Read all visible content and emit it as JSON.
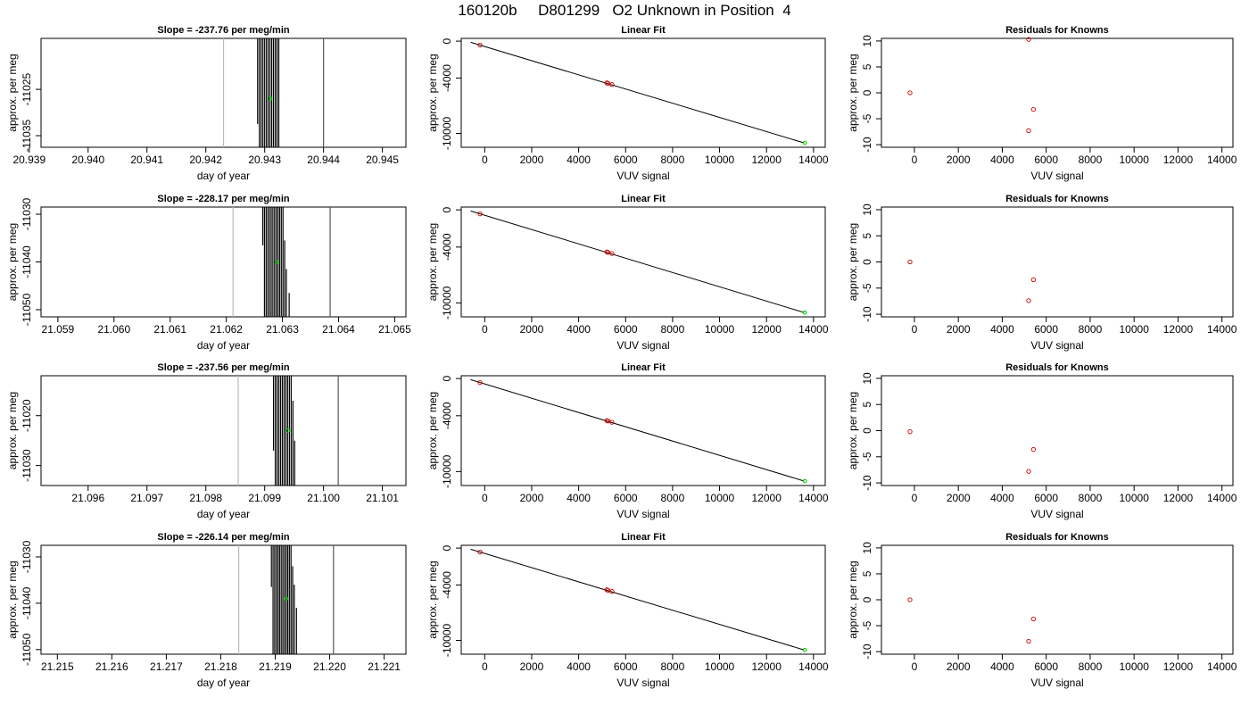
{
  "figure": {
    "title": "160120b     D801299   O2 Unknown in Position  4"
  },
  "chart_data": [
    {
      "type": "line",
      "row": 1,
      "col": 1,
      "panel": "timeseries",
      "title": "Slope =  -237.76  per meg/min",
      "xlabel": "day of year",
      "ylabel": "approx. per meg",
      "xlim": [
        20.9392,
        20.9454
      ],
      "ylim": [
        -11037.5,
        -11014
      ],
      "xticks": [
        20.939,
        20.94,
        20.941,
        20.942,
        20.943,
        20.944,
        20.945
      ],
      "xticklabels": [
        "20.939",
        "20.940",
        "20.941",
        "20.942",
        "20.943",
        "20.944",
        "20.945"
      ],
      "yticks": [
        -11025,
        -11035
      ],
      "yticklabels": [
        "-11025",
        "-11035"
      ],
      "reference_lines": [
        {
          "x": 20.9423,
          "color": "#bbbbbb"
        },
        {
          "x": 20.944,
          "color": "#555555"
        }
      ],
      "series": [
        {
          "x": [
            20.94288,
            20.94291,
            20.94294,
            20.94297,
            20.943,
            20.94303,
            20.94306,
            20.94309,
            20.94312,
            20.94315,
            20.94318,
            20.94321,
            20.94324
          ],
          "y_low": [
            -11032.5,
            -11037.5,
            -11037.5,
            -11037.5,
            -11037.5,
            -11037.5,
            -11037.5,
            -11037.5,
            -11037.5,
            -11037.5,
            -11037.5,
            -11037.5,
            -11037.5
          ],
          "y_high": [
            -11014,
            -11014,
            -11014,
            -11014,
            -11014,
            -11014,
            -11014,
            -11014,
            -11014,
            -11014,
            -11014,
            -11014,
            -11014
          ]
        }
      ],
      "marker": {
        "x": 20.9431,
        "y": -11027,
        "color": "#00cc00"
      }
    },
    {
      "type": "scatter",
      "row": 1,
      "col": 2,
      "panel": "fit",
      "title": "Linear Fit",
      "xlabel": "VUV signal",
      "ylabel": "approx. per meg",
      "xlim": [
        -1000,
        14500
      ],
      "ylim": [
        -11500,
        300
      ],
      "xticks": [
        0,
        2000,
        4000,
        6000,
        8000,
        10000,
        12000,
        14000
      ],
      "xticklabels": [
        "0",
        "2000",
        "4000",
        "6000",
        "8000",
        "10000",
        "12000",
        "14000"
      ],
      "yticks": [
        0,
        -4000,
        -10000
      ],
      "yticklabels": [
        "0",
        "-4000",
        "-10000"
      ],
      "line": {
        "x": [
          -600,
          13600
        ],
        "y": [
          -120,
          -11030
        ]
      },
      "points": [
        {
          "x": -200,
          "y": -430
        },
        {
          "x": 5200,
          "y": -4520
        },
        {
          "x": 5250,
          "y": -4570
        },
        {
          "x": 5420,
          "y": -4700
        }
      ],
      "marker": {
        "x": 13630,
        "y": -11030,
        "color": "#00cc00"
      }
    },
    {
      "type": "scatter",
      "row": 1,
      "col": 3,
      "panel": "residuals",
      "title": "Residuals for Knowns",
      "xlabel": "VUV signal",
      "ylabel": "approx. per meg",
      "xlim": [
        -1500,
        14500
      ],
      "ylim": [
        -10.5,
        10.5
      ],
      "xticks": [
        0,
        2000,
        4000,
        6000,
        8000,
        10000,
        12000,
        14000
      ],
      "xticklabels": [
        "0",
        "2000",
        "4000",
        "6000",
        "8000",
        "10000",
        "12000",
        "14000"
      ],
      "yticks": [
        10,
        5,
        0,
        -5,
        -10
      ],
      "yticklabels": [
        "10",
        "5",
        "0",
        "-5",
        "-10"
      ],
      "points": [
        {
          "x": -200,
          "y": 0
        },
        {
          "x": 5200,
          "y": 10.3
        },
        {
          "x": 5420,
          "y": -3.2
        },
        {
          "x": 5200,
          "y": -7.3
        }
      ]
    },
    {
      "type": "line",
      "row": 2,
      "col": 1,
      "panel": "timeseries",
      "title": "Slope =  -228.17  per meg/min",
      "xlabel": "day of year",
      "ylabel": "approx. per meg",
      "xlim": [
        21.0587,
        21.0652
      ],
      "ylim": [
        -11051.5,
        -11028.5
      ],
      "xticks": [
        21.059,
        21.06,
        21.061,
        21.062,
        21.063,
        21.064,
        21.065
      ],
      "xticklabels": [
        "21.059",
        "21.060",
        "21.061",
        "21.062",
        "21.063",
        "21.064",
        "21.065"
      ],
      "yticks": [
        -11030,
        -11040,
        -11050
      ],
      "yticklabels": [
        "-11030",
        "-11040",
        "-11050"
      ],
      "reference_lines": [
        {
          "x": 21.06212,
          "color": "#bbbbbb"
        },
        {
          "x": 21.06385,
          "color": "#555555"
        }
      ],
      "series": [
        {
          "x": [
            21.06265,
            21.06268,
            21.06271,
            21.06274,
            21.06277,
            21.0628,
            21.06283,
            21.06286,
            21.06289,
            21.06292,
            21.06295,
            21.06298,
            21.06301,
            21.06304,
            21.06307,
            21.06312
          ],
          "y_low": [
            -11036.5,
            -11051.5,
            -11051.5,
            -11051.5,
            -11051.5,
            -11051.5,
            -11051.5,
            -11051.5,
            -11051.5,
            -11051.5,
            -11051.5,
            -11051.5,
            -11051.5,
            -11051.5,
            -11051.5,
            -11051.5
          ],
          "y_high": [
            -11028.5,
            -11028.5,
            -11028.5,
            -11028.5,
            -11028.5,
            -11028.5,
            -11028.5,
            -11028.5,
            -11028.5,
            -11028.5,
            -11028.5,
            -11028.5,
            -11028.5,
            -11035.5,
            -11041.5,
            -11046.5
          ]
        }
      ],
      "marker": {
        "x": 21.0629,
        "y": -11040,
        "color": "#00cc00"
      }
    },
    {
      "type": "scatter",
      "row": 2,
      "col": 2,
      "panel": "fit",
      "title": "Linear Fit",
      "xlabel": "VUV signal",
      "ylabel": "approx. per meg",
      "xlim": [
        -1000,
        14500
      ],
      "ylim": [
        -11500,
        300
      ],
      "xticks": [
        0,
        2000,
        4000,
        6000,
        8000,
        10000,
        12000,
        14000
      ],
      "xticklabels": [
        "0",
        "2000",
        "4000",
        "6000",
        "8000",
        "10000",
        "12000",
        "14000"
      ],
      "yticks": [
        0,
        -4000,
        -10000
      ],
      "yticklabels": [
        "0",
        "-4000",
        "-10000"
      ],
      "line": {
        "x": [
          -600,
          13600
        ],
        "y": [
          -120,
          -11040
        ]
      },
      "points": [
        {
          "x": -200,
          "y": -430
        },
        {
          "x": 5200,
          "y": -4520
        },
        {
          "x": 5250,
          "y": -4570
        },
        {
          "x": 5420,
          "y": -4700
        }
      ],
      "marker": {
        "x": 13630,
        "y": -11040,
        "color": "#00cc00"
      }
    },
    {
      "type": "scatter",
      "row": 2,
      "col": 3,
      "panel": "residuals",
      "title": "Residuals for Knowns",
      "xlabel": "VUV signal",
      "ylabel": "approx. per meg",
      "xlim": [
        -1500,
        14500
      ],
      "ylim": [
        -10.5,
        10.5
      ],
      "xticks": [
        0,
        2000,
        4000,
        6000,
        8000,
        10000,
        12000,
        14000
      ],
      "xticklabels": [
        "0",
        "2000",
        "4000",
        "6000",
        "8000",
        "10000",
        "12000",
        "14000"
      ],
      "yticks": [
        10,
        5,
        0,
        -5,
        -10
      ],
      "yticklabels": [
        "10",
        "5",
        "0",
        "-5",
        "-10"
      ],
      "points": [
        {
          "x": -200,
          "y": 0
        },
        {
          "x": 5420,
          "y": -3.4
        },
        {
          "x": 5200,
          "y": -7.4
        }
      ]
    },
    {
      "type": "line",
      "row": 3,
      "col": 1,
      "panel": "timeseries",
      "title": "Slope =  -237.56  per meg/min",
      "xlabel": "day of year",
      "ylabel": "approx. per meg",
      "xlim": [
        21.0952,
        21.1014
      ],
      "ylim": [
        -11034,
        -11012
      ],
      "xticks": [
        21.096,
        21.097,
        21.098,
        21.099,
        21.1,
        21.101
      ],
      "xticklabels": [
        "21.096",
        "21.097",
        "21.098",
        "21.099",
        "21.100",
        "21.101"
      ],
      "yticks": [
        -11020,
        -11030
      ],
      "yticklabels": [
        "-11020",
        "-11030"
      ],
      "reference_lines": [
        {
          "x": 21.09855,
          "color": "#bbbbbb"
        },
        {
          "x": 21.10025,
          "color": "#555555"
        }
      ],
      "series": [
        {
          "x": [
            21.09915,
            21.09918,
            21.09921,
            21.09924,
            21.09927,
            21.0993,
            21.09933,
            21.09936,
            21.09939,
            21.09942,
            21.09945,
            21.09948,
            21.09951
          ],
          "y_low": [
            -11027,
            -11034,
            -11034,
            -11034,
            -11034,
            -11034,
            -11034,
            -11034,
            -11034,
            -11034,
            -11034,
            -11034,
            -11034
          ],
          "y_high": [
            -11012,
            -11012,
            -11012,
            -11012,
            -11012,
            -11012,
            -11012,
            -11012,
            -11012,
            -11012,
            -11012,
            -11017,
            -11025
          ]
        }
      ],
      "marker": {
        "x": 21.0994,
        "y": -11023,
        "color": "#00cc00"
      }
    },
    {
      "type": "scatter",
      "row": 3,
      "col": 2,
      "panel": "fit",
      "title": "Linear Fit",
      "xlabel": "VUV signal",
      "ylabel": "approx. per meg",
      "xlim": [
        -1000,
        14500
      ],
      "ylim": [
        -11500,
        300
      ],
      "xticks": [
        0,
        2000,
        4000,
        6000,
        8000,
        10000,
        12000,
        14000
      ],
      "xticklabels": [
        "0",
        "2000",
        "4000",
        "6000",
        "8000",
        "10000",
        "12000",
        "14000"
      ],
      "yticks": [
        0,
        -4000,
        -10000
      ],
      "yticklabels": [
        "0",
        "-4000",
        "-10000"
      ],
      "line": {
        "x": [
          -600,
          13600
        ],
        "y": [
          -120,
          -11020
        ]
      },
      "points": [
        {
          "x": -200,
          "y": -430
        },
        {
          "x": 5200,
          "y": -4520
        },
        {
          "x": 5250,
          "y": -4570
        },
        {
          "x": 5420,
          "y": -4700
        }
      ],
      "marker": {
        "x": 13630,
        "y": -11020,
        "color": "#00cc00"
      }
    },
    {
      "type": "scatter",
      "row": 3,
      "col": 3,
      "panel": "residuals",
      "title": "Residuals for Knowns",
      "xlabel": "VUV signal",
      "ylabel": "approx. per meg",
      "xlim": [
        -1500,
        14500
      ],
      "ylim": [
        -10.5,
        10.5
      ],
      "xticks": [
        0,
        2000,
        4000,
        6000,
        8000,
        10000,
        12000,
        14000
      ],
      "xticklabels": [
        "0",
        "2000",
        "4000",
        "6000",
        "8000",
        "10000",
        "12000",
        "14000"
      ],
      "yticks": [
        10,
        5,
        0,
        -5,
        -10
      ],
      "yticklabels": [
        "10",
        "5",
        "0",
        "-5",
        "-10"
      ],
      "points": [
        {
          "x": -200,
          "y": -0.2
        },
        {
          "x": 5420,
          "y": -3.6
        },
        {
          "x": 5200,
          "y": -7.8
        }
      ]
    },
    {
      "type": "line",
      "row": 4,
      "col": 1,
      "panel": "timeseries",
      "title": "Slope =  -226.14  per meg/min",
      "xlabel": "day of year",
      "ylabel": "approx. per meg",
      "xlim": [
        21.2147,
        21.2214
      ],
      "ylim": [
        -11051,
        -11027.5
      ],
      "xticks": [
        21.215,
        21.216,
        21.217,
        21.218,
        21.219,
        21.22,
        21.221
      ],
      "xticklabels": [
        "21.215",
        "21.216",
        "21.217",
        "21.218",
        "21.219",
        "21.220",
        "21.221"
      ],
      "yticks": [
        -11030,
        -11040,
        -11050
      ],
      "yticklabels": [
        "-11030",
        "-11040",
        "-11050"
      ],
      "reference_lines": [
        {
          "x": 21.21833,
          "color": "#bbbbbb"
        },
        {
          "x": 21.22007,
          "color": "#555555"
        }
      ],
      "series": [
        {
          "x": [
            21.21893,
            21.21896,
            21.21899,
            21.21902,
            21.21905,
            21.21908,
            21.21911,
            21.21914,
            21.21917,
            21.2192,
            21.21923,
            21.21926,
            21.21929,
            21.21932,
            21.21935,
            21.21939
          ],
          "y_low": [
            -11036.5,
            -11051,
            -11051,
            -11051,
            -11051,
            -11051,
            -11051,
            -11051,
            -11051,
            -11051,
            -11051,
            -11051,
            -11051,
            -11051,
            -11051,
            -11051
          ],
          "y_high": [
            -11027.5,
            -11027.5,
            -11027.5,
            -11027.5,
            -11027.5,
            -11027.5,
            -11027.5,
            -11027.5,
            -11027.5,
            -11027.5,
            -11027.5,
            -11027.5,
            -11027.5,
            -11032,
            -11036,
            -11041
          ]
        }
      ],
      "marker": {
        "x": 21.2192,
        "y": -11039,
        "color": "#00cc00"
      }
    },
    {
      "type": "scatter",
      "row": 4,
      "col": 2,
      "panel": "fit",
      "title": "Linear Fit",
      "xlabel": "VUV signal",
      "ylabel": "approx. per meg",
      "xlim": [
        -1000,
        14500
      ],
      "ylim": [
        -11500,
        300
      ],
      "xticks": [
        0,
        2000,
        4000,
        6000,
        8000,
        10000,
        12000,
        14000
      ],
      "xticklabels": [
        "0",
        "2000",
        "4000",
        "6000",
        "8000",
        "10000",
        "12000",
        "14000"
      ],
      "yticks": [
        0,
        -4000,
        -10000
      ],
      "yticklabels": [
        "0",
        "-4000",
        "-10000"
      ],
      "line": {
        "x": [
          -600,
          13600
        ],
        "y": [
          -120,
          -11040
        ]
      },
      "points": [
        {
          "x": -200,
          "y": -430
        },
        {
          "x": 5200,
          "y": -4520
        },
        {
          "x": 5250,
          "y": -4570
        },
        {
          "x": 5420,
          "y": -4700
        }
      ],
      "marker": {
        "x": 13630,
        "y": -11040,
        "color": "#00cc00"
      }
    },
    {
      "type": "scatter",
      "row": 4,
      "col": 3,
      "panel": "residuals",
      "title": "Residuals for Knowns",
      "xlabel": "VUV signal",
      "ylabel": "approx. per meg",
      "xlim": [
        -1500,
        14500
      ],
      "ylim": [
        -10.5,
        10.5
      ],
      "xticks": [
        0,
        2000,
        4000,
        6000,
        8000,
        10000,
        12000,
        14000
      ],
      "xticklabels": [
        "0",
        "2000",
        "4000",
        "6000",
        "8000",
        "10000",
        "12000",
        "14000"
      ],
      "yticks": [
        10,
        5,
        0,
        -5,
        -10
      ],
      "yticklabels": [
        "10",
        "5",
        "0",
        "-5",
        "-10"
      ],
      "points": [
        {
          "x": -200,
          "y": 0
        },
        {
          "x": 5420,
          "y": -3.7
        },
        {
          "x": 5200,
          "y": -8
        }
      ]
    }
  ],
  "colors": {
    "axis": "#000000",
    "fit_points": "#cc0000",
    "unknown_marker": "#00cc00",
    "reference_light": "#bbbbbb",
    "reference_dark": "#555555"
  }
}
